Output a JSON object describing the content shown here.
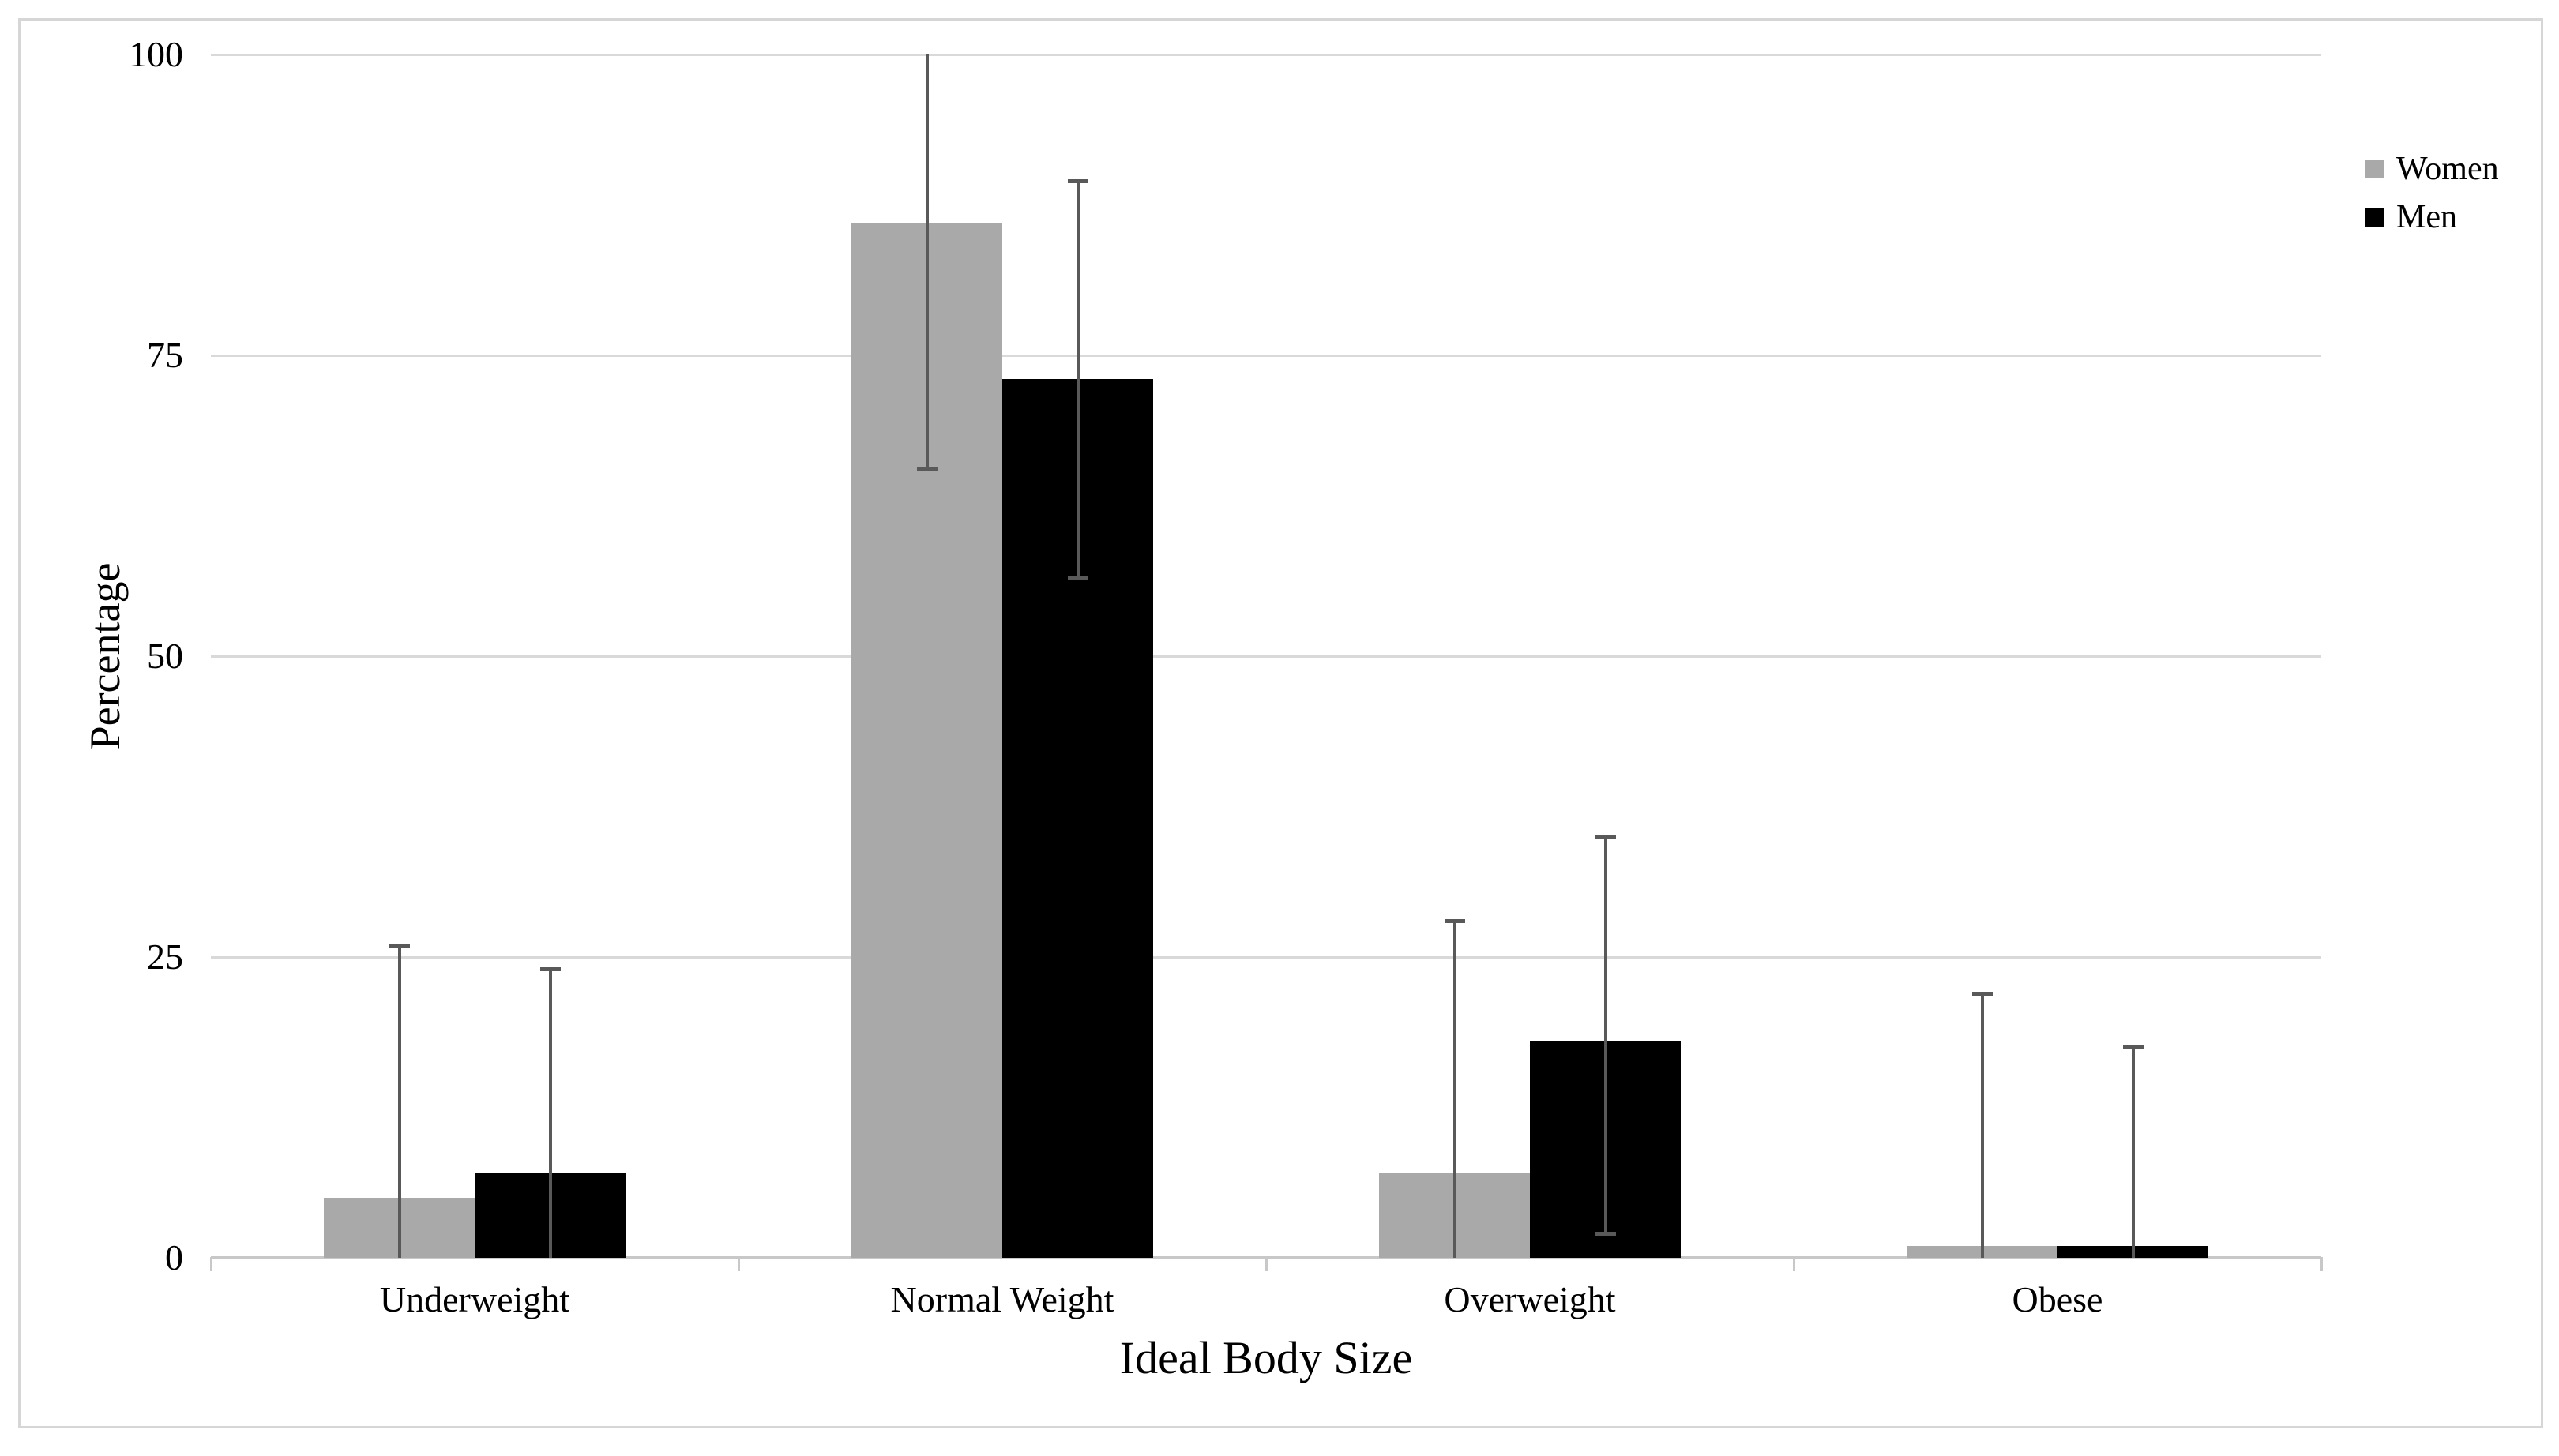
{
  "chart_data": {
    "type": "bar",
    "title": "",
    "xlabel": "Ideal Body Size",
    "ylabel": "Percentage",
    "ylim": [
      0,
      100
    ],
    "yticks": [
      0,
      25,
      50,
      75,
      100
    ],
    "grid": true,
    "legend_position": "top-right",
    "categories": [
      "Underweight",
      "Normal Weight",
      "Overweight",
      "Obese"
    ],
    "series": [
      {
        "name": "Women",
        "color": "#a9a9a9",
        "values": [
          5,
          86,
          7,
          1
        ],
        "error_bars": [
          {
            "top": 26,
            "bottom": 0,
            "cap_top": true,
            "cap_bottom": false
          },
          {
            "top": 100,
            "bottom": 65.5,
            "cap_top": false,
            "cap_bottom": true
          },
          {
            "top": 28,
            "bottom": 0,
            "cap_top": true,
            "cap_bottom": false
          },
          {
            "top": 22,
            "bottom": 0,
            "cap_top": true,
            "cap_bottom": false
          }
        ]
      },
      {
        "name": "Men",
        "color": "#000000",
        "values": [
          7,
          73,
          18,
          1
        ],
        "error_bars": [
          {
            "top": 24,
            "bottom": 0,
            "cap_top": true,
            "cap_bottom": false
          },
          {
            "top": 89.5,
            "bottom": 56.5,
            "cap_top": true,
            "cap_bottom": true
          },
          {
            "top": 35,
            "bottom": 2,
            "cap_top": true,
            "cap_bottom": true
          },
          {
            "top": 17.5,
            "bottom": 0,
            "cap_top": true,
            "cap_bottom": false
          }
        ]
      }
    ],
    "colors": {
      "gridline": "#d9d9d9",
      "axis_line": "#c8c8c8",
      "error_bar": "#595959",
      "figure_border": "#d6d6d6",
      "text": "#000000"
    }
  }
}
